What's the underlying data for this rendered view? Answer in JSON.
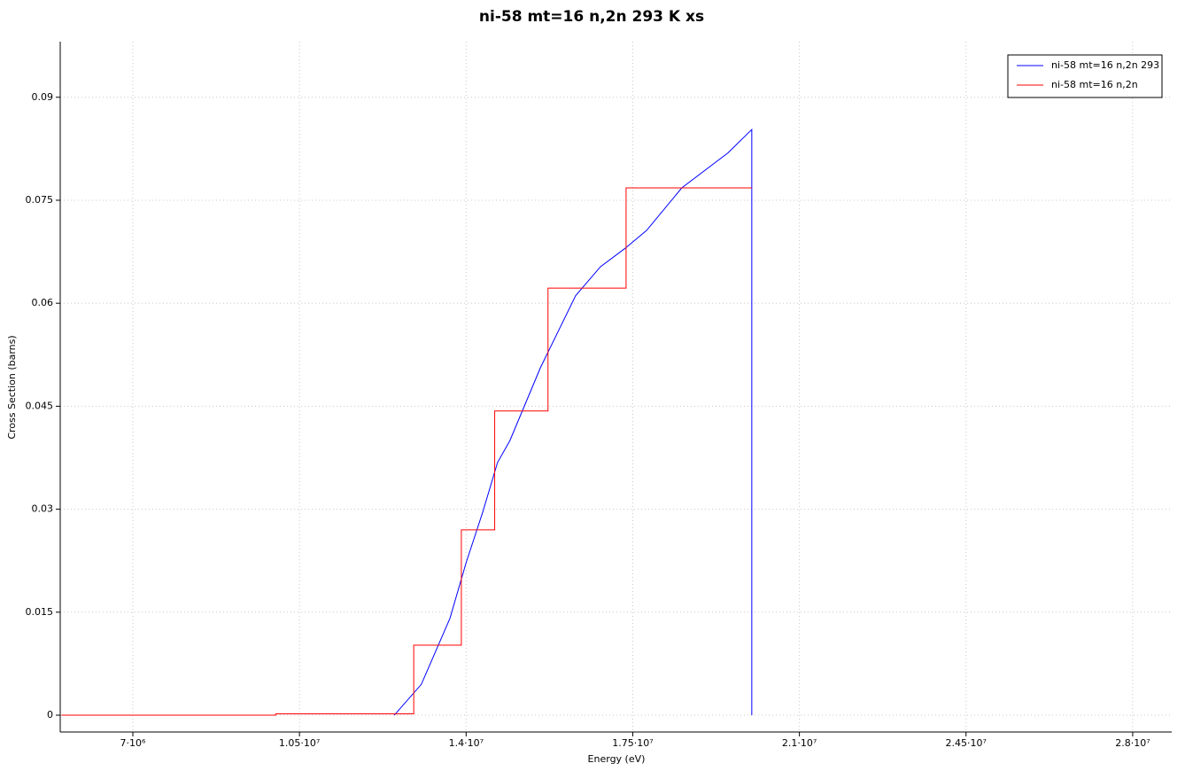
{
  "chart_data": {
    "type": "line",
    "title": "ni-58 mt=16 n,2n 293 K xs",
    "x_label": "Energy (eV)",
    "y_label": "Cross Section (barns)",
    "xlim": [
      5475000,
      28820000
    ],
    "ylim": [
      -0.00245,
      0.0981
    ],
    "xticks": [
      {
        "value": 7000000,
        "label": "7·10⁶"
      },
      {
        "value": 10500000,
        "label": "1.05·10⁷"
      },
      {
        "value": 14000000,
        "label": "1.4·10⁷"
      },
      {
        "value": 17500000,
        "label": "1.75·10⁷"
      },
      {
        "value": 21000000,
        "label": "2.1·10⁷"
      },
      {
        "value": 24500000,
        "label": "2.45·10⁷"
      },
      {
        "value": 28000000,
        "label": "2.8·10⁷"
      }
    ],
    "yticks": [
      0,
      0.015,
      0.03,
      0.045,
      0.06,
      0.075,
      0.09
    ],
    "grid": true,
    "legend": "top-right",
    "series": [
      {
        "name": "ni-58 mt=16 n,2n 293",
        "color": "#0000ff",
        "x": [
          12490000,
          13060000,
          13660000,
          14000000,
          14350000,
          14660000,
          14920000,
          15560000,
          16300000,
          16820000,
          17340000,
          17790000,
          18530000,
          19500000,
          20000000,
          20000000
        ],
        "values": [
          0,
          0.0045,
          0.0141,
          0.0222,
          0.0296,
          0.0368,
          0.04,
          0.0506,
          0.0611,
          0.0653,
          0.068,
          0.0706,
          0.0768,
          0.0819,
          0.0853,
          0
        ]
      },
      {
        "name": "ni-58 mt=16 n,2n",
        "color": "#ff0000",
        "x": [
          5500000,
          10000000,
          10000000,
          12900000,
          12900000,
          13900000,
          13900000,
          14600000,
          14600000,
          15720000,
          15720000,
          17360000,
          17360000,
          20000000
        ],
        "values": [
          0,
          0,
          0.0002,
          0.0002,
          0.0102,
          0.0102,
          0.027,
          0.027,
          0.0443,
          0.0443,
          0.0622,
          0.0622,
          0.0768,
          0.0768
        ]
      }
    ]
  }
}
